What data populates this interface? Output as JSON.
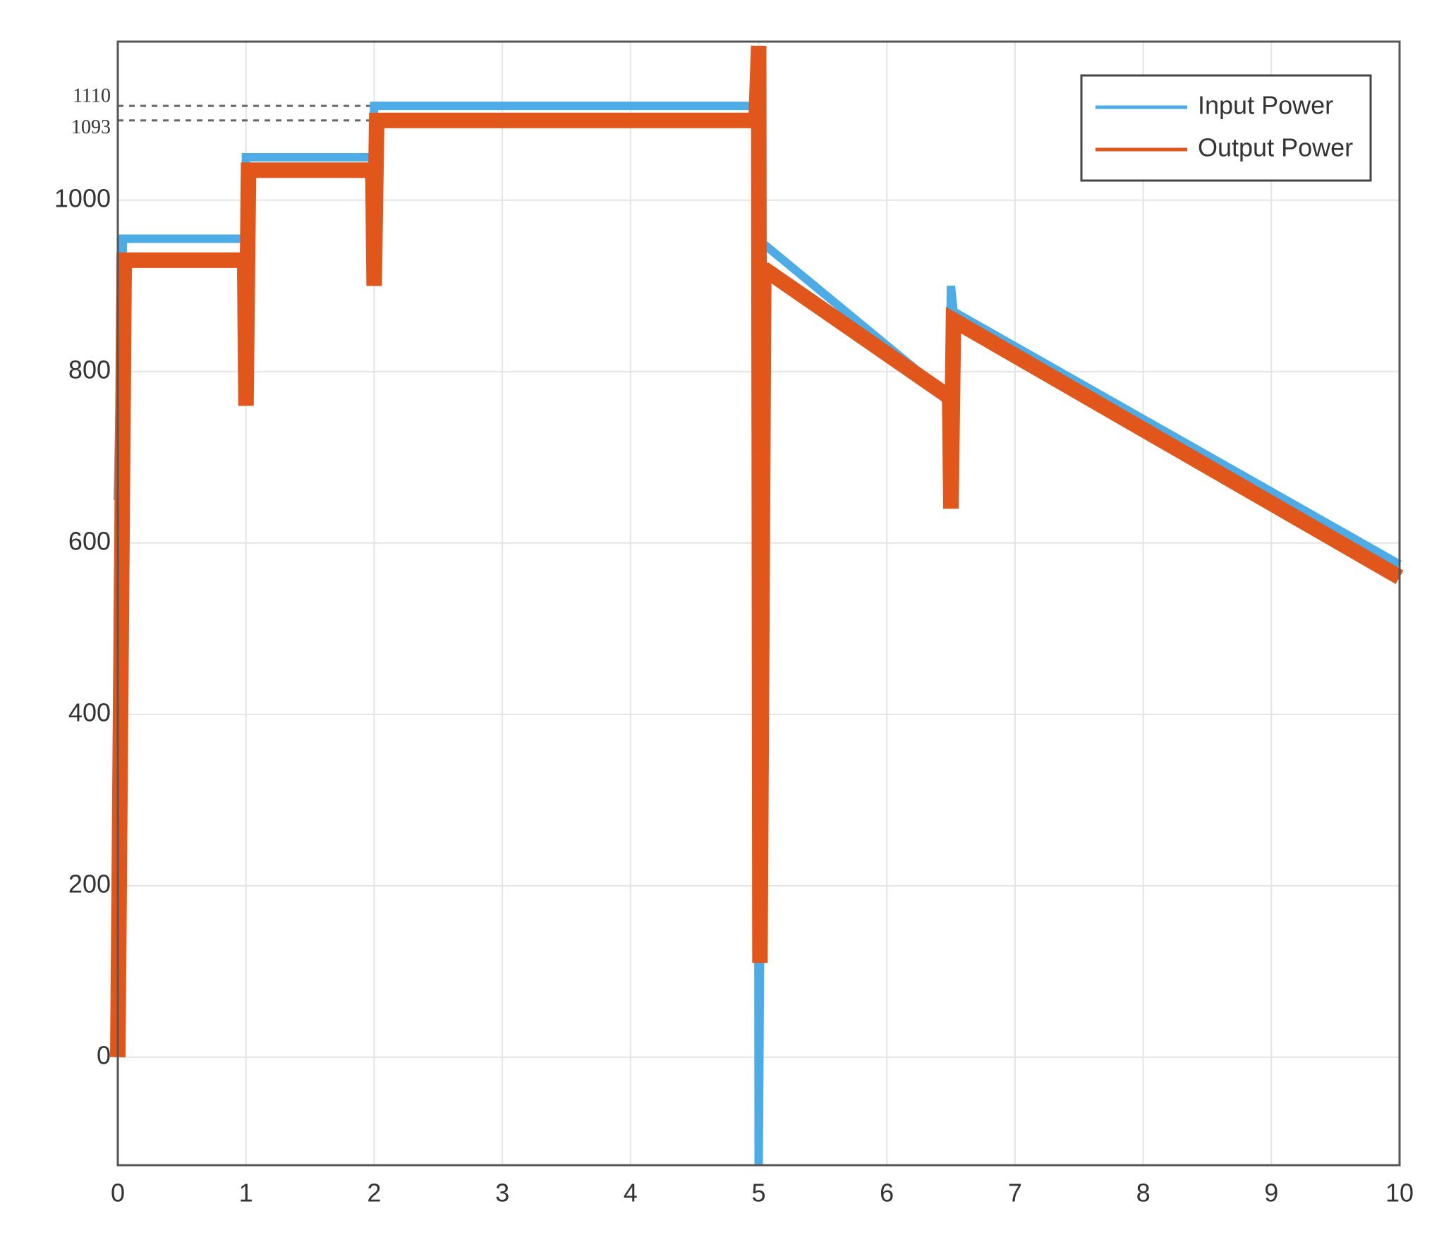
{
  "chart_data": {
    "type": "line",
    "xlim": [
      0,
      10
    ],
    "xticks": [
      0,
      1,
      2,
      3,
      4,
      5,
      6,
      7,
      8,
      9,
      10
    ],
    "ylim": [
      -126,
      1185
    ],
    "yticks": [
      0,
      200,
      400,
      600,
      800,
      1000
    ],
    "grid": true,
    "legend": "upper right",
    "reference_lines": [
      {
        "value": 1110,
        "x_end": 2
      },
      {
        "value": 1093,
        "x_end": 2
      }
    ],
    "series": [
      {
        "name": "Input Power",
        "color": "#4dabe6",
        "x": [
          0,
          0.04,
          0.99,
          1.0,
          1.99,
          2.0,
          4.99,
          5.0,
          5.01,
          5.03,
          6.49,
          6.5,
          6.52,
          10
        ],
        "values": [
          650,
          955,
          955,
          1050,
          1050,
          1110,
          1110,
          -126,
          110,
          950,
          770,
          900,
          870,
          575
        ]
      },
      {
        "name": "Output Power",
        "color": "#e0561b",
        "x": [
          0,
          0.05,
          0.99,
          1.0,
          1.02,
          1.99,
          2.0,
          2.02,
          4.98,
          5.0,
          5.01,
          5.04,
          6.49,
          6.5,
          6.52,
          10
        ],
        "values": [
          0,
          930,
          930,
          760,
          1035,
          1035,
          900,
          1093,
          1093,
          1180,
          110,
          920,
          770,
          640,
          860,
          560
        ]
      }
    ]
  }
}
